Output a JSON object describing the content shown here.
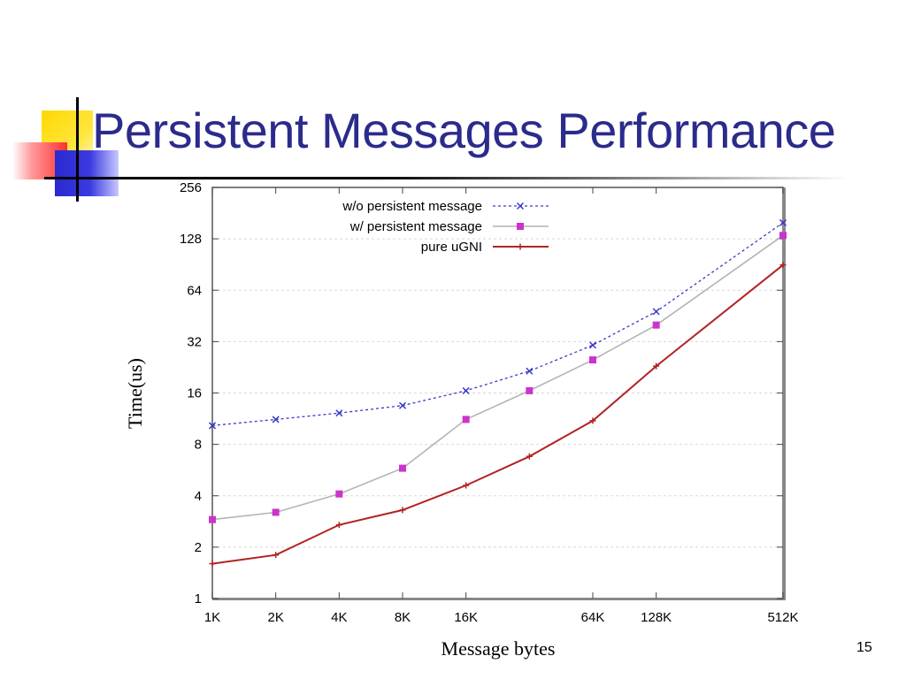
{
  "slide": {
    "title": "Persistent Messages Performance",
    "page_number": "15"
  },
  "colors": {
    "title": "#2b2b8c",
    "series_wo": "#3a3ac8",
    "series_w": "#cc33cc",
    "series_w_line": "#b4b4b4",
    "series_pure": "#b22222"
  },
  "chart_data": {
    "type": "line",
    "xlabel": "Message bytes",
    "ylabel": "Time(us)",
    "x_scale": "log2",
    "y_scale": "log2",
    "xlim": [
      1024,
      524288
    ],
    "ylim": [
      1,
      256
    ],
    "x_ticks": [
      {
        "value": 1024,
        "label": "1K"
      },
      {
        "value": 2048,
        "label": "2K"
      },
      {
        "value": 4096,
        "label": "4K"
      },
      {
        "value": 8192,
        "label": "8K"
      },
      {
        "value": 16384,
        "label": "16K"
      },
      {
        "value": 65536,
        "label": "64K"
      },
      {
        "value": 131072,
        "label": "128K"
      },
      {
        "value": 524288,
        "label": "512K"
      }
    ],
    "y_ticks": [
      {
        "value": 1,
        "label": "1"
      },
      {
        "value": 2,
        "label": "2"
      },
      {
        "value": 4,
        "label": "4"
      },
      {
        "value": 8,
        "label": "8"
      },
      {
        "value": 16,
        "label": "16"
      },
      {
        "value": 32,
        "label": "32"
      },
      {
        "value": 64,
        "label": "64"
      },
      {
        "value": 128,
        "label": "128"
      },
      {
        "value": 256,
        "label": "256"
      }
    ],
    "grid": "horizontal dashed",
    "legend_position": "top-left",
    "x": [
      1024,
      2048,
      4096,
      8192,
      16384,
      32768,
      65536,
      131072,
      524288
    ],
    "series": [
      {
        "name": "w/o persistent message",
        "marker": "x",
        "line": "dotted",
        "values": [
          10.3,
          11.2,
          12.2,
          13.5,
          16.5,
          21.5,
          30.5,
          48.0,
          159.0
        ]
      },
      {
        "name": "w/ persistent message",
        "marker": "square",
        "line": "solid-light",
        "values": [
          2.9,
          3.2,
          4.1,
          5.8,
          11.2,
          16.5,
          25.0,
          40.0,
          134.0
        ]
      },
      {
        "name": "pure uGNI",
        "marker": "plus",
        "line": "solid",
        "values": [
          1.6,
          1.8,
          2.7,
          3.3,
          4.6,
          6.8,
          11.0,
          23.0,
          90.0
        ]
      }
    ]
  }
}
